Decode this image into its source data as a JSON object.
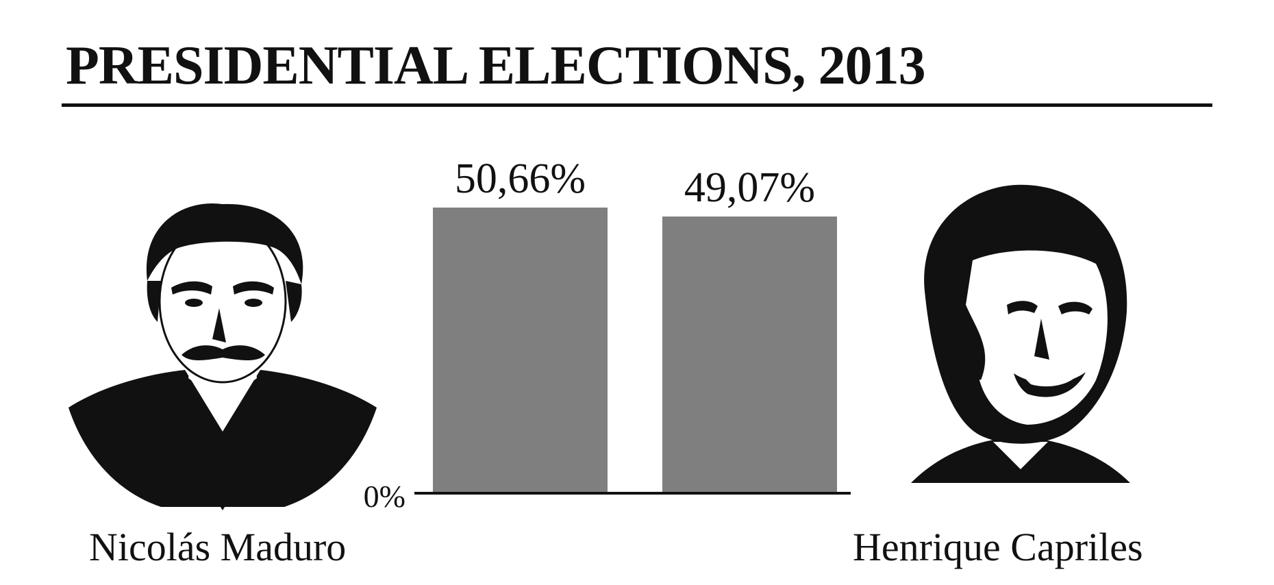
{
  "title": "PRESIDENTIAL ELECTIONS, 2013",
  "candidates": [
    {
      "name": "Nicolás Maduro"
    },
    {
      "name": "Henrique Capriles"
    }
  ],
  "colors": {
    "bar": "#7f7f7f",
    "ink": "#111111",
    "background": "#ffffff"
  },
  "chart_data": {
    "type": "bar",
    "categories": [
      "Nicolás Maduro",
      "Henrique Capriles"
    ],
    "values": [
      50.66,
      49.07
    ],
    "value_labels": [
      "50,66%",
      "49,07%"
    ],
    "baseline_label": "0%",
    "ylim": [
      0,
      50.66
    ],
    "grid": false,
    "legend": "none"
  }
}
